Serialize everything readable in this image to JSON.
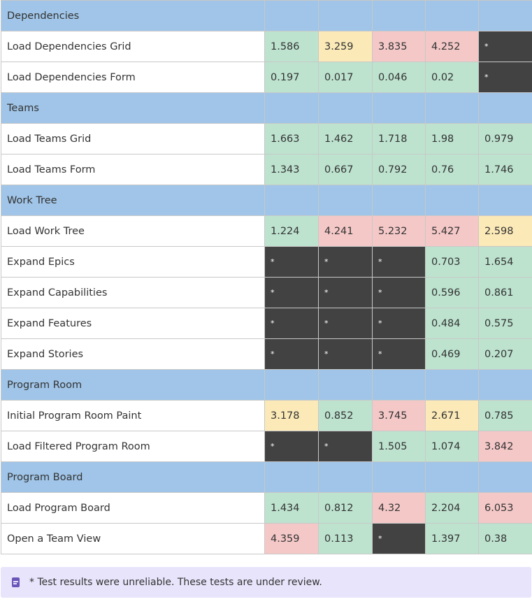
{
  "colors": {
    "section_bg": "#a0c5e8",
    "good": "#bde3cf",
    "warn": "#fbe9b7",
    "bad": "#f5c8c8",
    "unreliable": "#424242",
    "note_bg": "#e8e4fb",
    "note_icon": "#6a55b8"
  },
  "rows": [
    {
      "type": "section",
      "label": "Dependencies"
    },
    {
      "type": "row",
      "label": "Load Dependencies Grid",
      "cells": [
        {
          "v": "1.586",
          "s": "good"
        },
        {
          "v": "3.259",
          "s": "warn"
        },
        {
          "v": "3.835",
          "s": "bad"
        },
        {
          "v": "4.252",
          "s": "bad"
        },
        {
          "v": "*",
          "s": "na"
        }
      ]
    },
    {
      "type": "row",
      "label": "Load Dependencies Form",
      "cells": [
        {
          "v": "0.197",
          "s": "good"
        },
        {
          "v": "0.017",
          "s": "good"
        },
        {
          "v": "0.046",
          "s": "good"
        },
        {
          "v": "0.02",
          "s": "good"
        },
        {
          "v": "*",
          "s": "na"
        }
      ]
    },
    {
      "type": "section",
      "label": "Teams"
    },
    {
      "type": "row",
      "label": "Load Teams Grid",
      "cells": [
        {
          "v": "1.663",
          "s": "good"
        },
        {
          "v": "1.462",
          "s": "good"
        },
        {
          "v": "1.718",
          "s": "good"
        },
        {
          "v": "1.98",
          "s": "good"
        },
        {
          "v": "0.979",
          "s": "good"
        }
      ]
    },
    {
      "type": "row",
      "label": "Load Teams Form",
      "cells": [
        {
          "v": "1.343",
          "s": "good"
        },
        {
          "v": "0.667",
          "s": "good"
        },
        {
          "v": "0.792",
          "s": "good"
        },
        {
          "v": "0.76",
          "s": "good"
        },
        {
          "v": "1.746",
          "s": "good"
        }
      ]
    },
    {
      "type": "section",
      "label": "Work Tree"
    },
    {
      "type": "row",
      "label": "Load Work Tree",
      "cells": [
        {
          "v": "1.224",
          "s": "good"
        },
        {
          "v": "4.241",
          "s": "bad"
        },
        {
          "v": "5.232",
          "s": "bad"
        },
        {
          "v": "5.427",
          "s": "bad"
        },
        {
          "v": "2.598",
          "s": "warn"
        }
      ]
    },
    {
      "type": "row",
      "label": "Expand Epics",
      "cells": [
        {
          "v": "*",
          "s": "na"
        },
        {
          "v": "*",
          "s": "na"
        },
        {
          "v": "*",
          "s": "na"
        },
        {
          "v": "0.703",
          "s": "good"
        },
        {
          "v": "1.654",
          "s": "good"
        }
      ]
    },
    {
      "type": "row",
      "label": "Expand Capabilities",
      "cells": [
        {
          "v": "*",
          "s": "na"
        },
        {
          "v": "*",
          "s": "na"
        },
        {
          "v": "*",
          "s": "na"
        },
        {
          "v": "0.596",
          "s": "good"
        },
        {
          "v": "0.861",
          "s": "good"
        }
      ]
    },
    {
      "type": "row",
      "label": "Expand Features",
      "cells": [
        {
          "v": "*",
          "s": "na"
        },
        {
          "v": "*",
          "s": "na"
        },
        {
          "v": "*",
          "s": "na"
        },
        {
          "v": "0.484",
          "s": "good"
        },
        {
          "v": "0.575",
          "s": "good"
        }
      ]
    },
    {
      "type": "row",
      "label": "Expand Stories",
      "cells": [
        {
          "v": "*",
          "s": "na"
        },
        {
          "v": "*",
          "s": "na"
        },
        {
          "v": "*",
          "s": "na"
        },
        {
          "v": "0.469",
          "s": "good"
        },
        {
          "v": "0.207",
          "s": "good"
        }
      ]
    },
    {
      "type": "section",
      "label": "Program Room"
    },
    {
      "type": "row",
      "label": "Initial Program Room Paint",
      "cells": [
        {
          "v": "3.178",
          "s": "warn"
        },
        {
          "v": "0.852",
          "s": "good"
        },
        {
          "v": "3.745",
          "s": "bad"
        },
        {
          "v": "2.671",
          "s": "warn"
        },
        {
          "v": "0.785",
          "s": "good"
        }
      ]
    },
    {
      "type": "row",
      "label": "Load Filtered Program Room",
      "cells": [
        {
          "v": "*",
          "s": "na"
        },
        {
          "v": "*",
          "s": "na"
        },
        {
          "v": "1.505",
          "s": "good"
        },
        {
          "v": "1.074",
          "s": "good"
        },
        {
          "v": "3.842",
          "s": "bad"
        }
      ]
    },
    {
      "type": "section",
      "label": "Program Board"
    },
    {
      "type": "row",
      "label": "Load Program Board",
      "cells": [
        {
          "v": "1.434",
          "s": "good"
        },
        {
          "v": "0.812",
          "s": "good"
        },
        {
          "v": "4.32",
          "s": "bad"
        },
        {
          "v": "2.204",
          "s": "good"
        },
        {
          "v": "6.053",
          "s": "bad"
        }
      ]
    },
    {
      "type": "row",
      "label": "Open a Team View",
      "cells": [
        {
          "v": "4.359",
          "s": "bad"
        },
        {
          "v": "0.113",
          "s": "good"
        },
        {
          "v": "*",
          "s": "na"
        },
        {
          "v": "1.397",
          "s": "good"
        },
        {
          "v": "0.38",
          "s": "good"
        }
      ]
    }
  ],
  "note": {
    "icon": "note-icon",
    "text": "* Test results were unreliable. These tests are under review."
  }
}
